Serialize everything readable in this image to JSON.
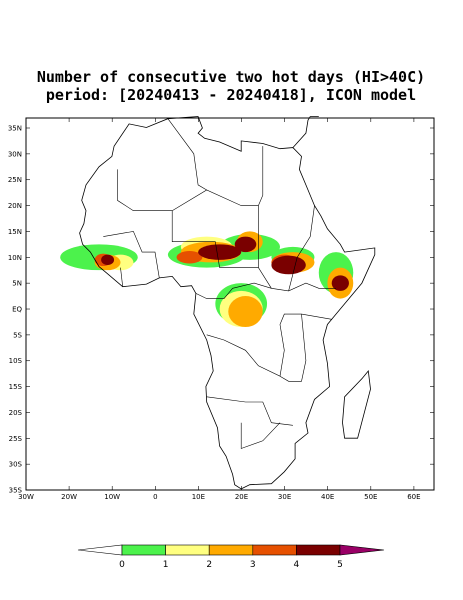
{
  "title": {
    "line1": "Number of consecutive two hot days (HI>40C)",
    "line2": "period: [20240413 - 20240418], ICON model"
  },
  "lat_labels": [
    "35N",
    "30N",
    "25N",
    "20N",
    "15N",
    "10N",
    "5N",
    "EQ",
    "5S",
    "10S",
    "15S",
    "20S",
    "25S",
    "30S",
    "35S"
  ],
  "lon_labels": [
    "30W",
    "20W",
    "10W",
    "0",
    "10E",
    "20E",
    "30E",
    "40E",
    "50E",
    "60E"
  ],
  "colorbar": {
    "labels": [
      "0",
      "1",
      "2",
      "3",
      "4",
      "5"
    ],
    "colors": [
      "#ffffff",
      "#4cf24c",
      "#ffff80",
      "#ffaa00",
      "#e65000",
      "#7a0000",
      "#990066"
    ]
  }
}
